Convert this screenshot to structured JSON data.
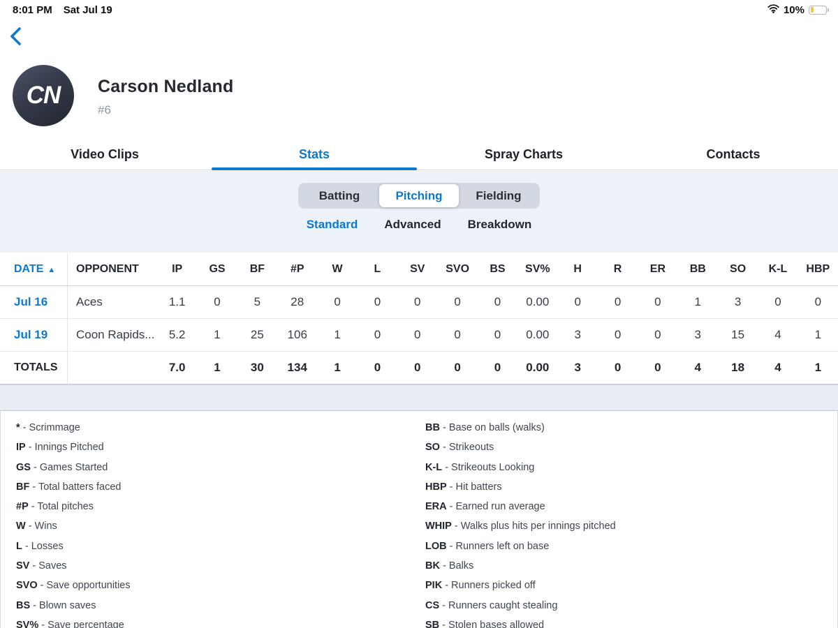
{
  "accent_color": "#0b79d2",
  "status_bar": {
    "time": "8:01 PM",
    "date": "Sat Jul 19",
    "battery_percent": "10%"
  },
  "profile": {
    "initials": "CN",
    "name": "Carson Nedland",
    "jersey_number": "#6"
  },
  "tabs": {
    "items": [
      "Video Clips",
      "Stats",
      "Spray Charts",
      "Contacts"
    ],
    "active_index": 1
  },
  "segmented": {
    "items": [
      "Batting",
      "Pitching",
      "Fielding"
    ],
    "selected_index": 1
  },
  "subtabs": {
    "items": [
      "Standard",
      "Advanced",
      "Breakdown"
    ],
    "selected_index": 0
  },
  "table": {
    "columns": [
      "DATE",
      "OPPONENT",
      "IP",
      "GS",
      "BF",
      "#P",
      "W",
      "L",
      "SV",
      "SVO",
      "BS",
      "SV%",
      "H",
      "R",
      "ER",
      "BB",
      "SO",
      "K-L",
      "HBP"
    ],
    "sort": {
      "column": "DATE",
      "direction": "asc",
      "arrow": "▲"
    },
    "rows": [
      {
        "date": "Jul 16",
        "opponent": "Aces",
        "values": [
          "1.1",
          "0",
          "5",
          "28",
          "0",
          "0",
          "0",
          "0",
          "0",
          "0.00",
          "0",
          "0",
          "0",
          "1",
          "3",
          "0",
          "0"
        ]
      },
      {
        "date": "Jul 19",
        "opponent": "Coon Rapids...",
        "values": [
          "5.2",
          "1",
          "25",
          "106",
          "1",
          "0",
          "0",
          "0",
          "0",
          "0.00",
          "3",
          "0",
          "0",
          "3",
          "15",
          "4",
          "1"
        ]
      }
    ],
    "totals": {
      "label": "TOTALS",
      "values": [
        "7.0",
        "1",
        "30",
        "134",
        "1",
        "0",
        "0",
        "0",
        "0",
        "0.00",
        "3",
        "0",
        "0",
        "4",
        "18",
        "4",
        "1"
      ]
    }
  },
  "legend": {
    "left": [
      {
        "abbr": "*",
        "desc": "Scrimmage"
      },
      {
        "abbr": "IP",
        "desc": "Innings Pitched"
      },
      {
        "abbr": "GS",
        "desc": "Games Started"
      },
      {
        "abbr": "BF",
        "desc": "Total batters faced"
      },
      {
        "abbr": "#P",
        "desc": "Total pitches"
      },
      {
        "abbr": "W",
        "desc": "Wins"
      },
      {
        "abbr": "L",
        "desc": "Losses"
      },
      {
        "abbr": "SV",
        "desc": "Saves"
      },
      {
        "abbr": "SVO",
        "desc": "Save opportunities"
      },
      {
        "abbr": "BS",
        "desc": "Blown saves"
      },
      {
        "abbr": "SV%",
        "desc": "Save percentage"
      }
    ],
    "right": [
      {
        "abbr": "BB",
        "desc": "Base on balls (walks)"
      },
      {
        "abbr": "SO",
        "desc": "Strikeouts"
      },
      {
        "abbr": "K-L",
        "desc": "Strikeouts Looking"
      },
      {
        "abbr": "HBP",
        "desc": "Hit batters"
      },
      {
        "abbr": "ERA",
        "desc": "Earned run average"
      },
      {
        "abbr": "WHIP",
        "desc": "Walks plus hits per innings pitched"
      },
      {
        "abbr": "LOB",
        "desc": "Runners left on base"
      },
      {
        "abbr": "BK",
        "desc": "Balks"
      },
      {
        "abbr": "PIK",
        "desc": "Runners picked off"
      },
      {
        "abbr": "CS",
        "desc": "Runners caught stealing"
      },
      {
        "abbr": "SB",
        "desc": "Stolen bases allowed"
      }
    ]
  }
}
